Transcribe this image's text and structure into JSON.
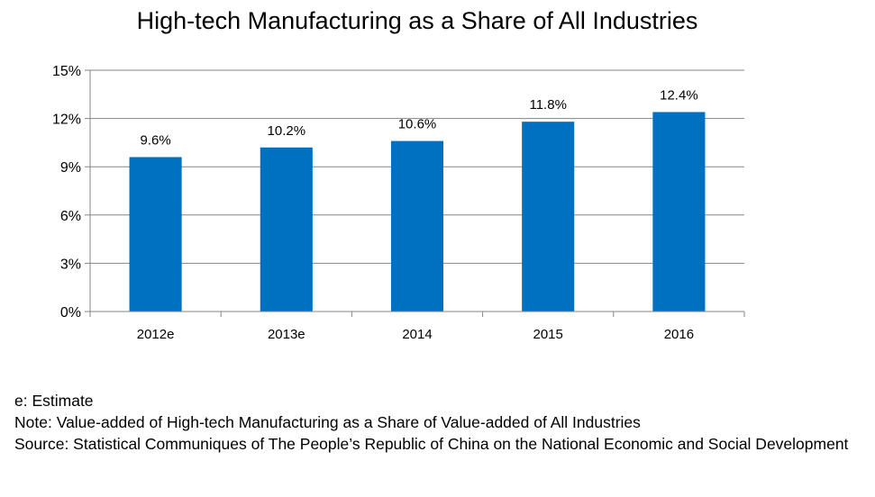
{
  "chart_data": {
    "type": "bar",
    "title": "High-tech Manufacturing as a Share of All Industries",
    "categories": [
      "2012e",
      "2013e",
      "2014",
      "2015",
      "2016"
    ],
    "values": [
      9.6,
      10.2,
      10.6,
      11.8,
      12.4
    ],
    "data_labels": [
      "9.6%",
      "10.2%",
      "10.6%",
      "11.8%",
      "12.4%"
    ],
    "y_ticks": [
      0,
      3,
      6,
      9,
      12,
      15
    ],
    "y_tick_labels": [
      "0%",
      "3%",
      "6%",
      "9%",
      "12%",
      "15%"
    ],
    "ylim": [
      0,
      15
    ],
    "xlabel": "",
    "ylabel": "",
    "grid": true,
    "bar_color": "#0070C0",
    "grid_color": "#868686"
  },
  "notes": {
    "estimate": "e: Estimate",
    "note": "Note: Value-added of High-tech Manufacturing as a Share of Value-added of All Industries",
    "source": "Source: Statistical Communiques of The People’s Republic of China on the National Economic and Social Development"
  }
}
